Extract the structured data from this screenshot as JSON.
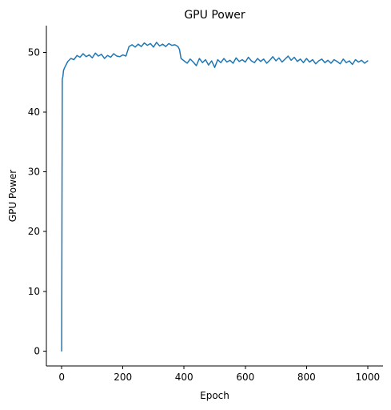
{
  "chart_data": {
    "type": "line",
    "title": "GPU Power",
    "xlabel": "Epoch",
    "ylabel": "GPU Power",
    "xlim": [
      -50,
      1050
    ],
    "ylim": [
      -2.5,
      54.5
    ],
    "xticks": [
      0,
      200,
      400,
      600,
      800,
      1000
    ],
    "yticks": [
      0,
      10,
      20,
      30,
      40,
      50
    ],
    "grid": false,
    "legend": null,
    "series": [
      {
        "color": "#1f77b4",
        "x": [
          0,
          1,
          2,
          4,
          6,
          10,
          20,
          30,
          40,
          50,
          60,
          70,
          80,
          90,
          100,
          110,
          120,
          130,
          140,
          150,
          160,
          170,
          180,
          190,
          200,
          210,
          215,
          220,
          230,
          240,
          250,
          260,
          270,
          280,
          290,
          300,
          310,
          320,
          330,
          340,
          350,
          360,
          370,
          380,
          385,
          390,
          400,
          410,
          420,
          430,
          440,
          450,
          460,
          470,
          480,
          490,
          500,
          510,
          520,
          530,
          540,
          550,
          560,
          570,
          580,
          590,
          600,
          610,
          620,
          630,
          640,
          650,
          660,
          670,
          680,
          690,
          700,
          710,
          720,
          730,
          740,
          750,
          760,
          770,
          780,
          790,
          800,
          810,
          820,
          830,
          840,
          850,
          860,
          870,
          880,
          890,
          900,
          910,
          920,
          930,
          940,
          950,
          960,
          970,
          980,
          990,
          1000
        ],
        "values": [
          0,
          25,
          45.5,
          46,
          47,
          47.5,
          48.5,
          49,
          48.8,
          49.5,
          49.2,
          49.8,
          49.3,
          49.6,
          49.1,
          49.9,
          49.4,
          49.7,
          49,
          49.5,
          49.2,
          49.8,
          49.4,
          49.3,
          49.6,
          49.4,
          50.2,
          51,
          51.3,
          50.9,
          51.4,
          51,
          51.6,
          51.2,
          51.5,
          50.9,
          51.7,
          51.1,
          51.4,
          51,
          51.5,
          51.2,
          51.3,
          51,
          50.5,
          49,
          48.6,
          48.2,
          48.9,
          48.4,
          47.8,
          49,
          48.3,
          48.8,
          47.9,
          48.6,
          47.5,
          48.8,
          48.3,
          49,
          48.4,
          48.7,
          48.2,
          49.1,
          48.5,
          48.8,
          48.4,
          49.2,
          48.6,
          48.3,
          49,
          48.5,
          48.9,
          48.2,
          48.7,
          49.3,
          48.6,
          49.1,
          48.4,
          48.9,
          49.4,
          48.7,
          49.2,
          48.5,
          48.9,
          48.3,
          49,
          48.4,
          48.8,
          48.1,
          48.6,
          48.9,
          48.3,
          48.7,
          48.2,
          48.8,
          48.5,
          48.1,
          48.9,
          48.3,
          48.6,
          48,
          48.8,
          48.4,
          48.7,
          48.2,
          48.6
        ]
      }
    ]
  }
}
